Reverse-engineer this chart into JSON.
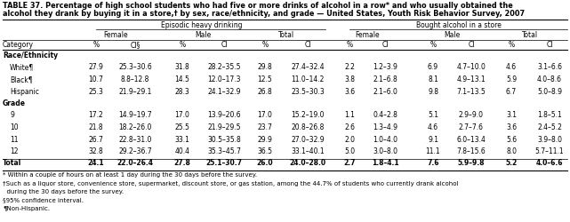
{
  "title_line1": "TABLE 37. Percentage of high school students who had five or more drinks of alcohol in a row* and who usually obtained the",
  "title_line2": "alcohol they drank by buying it in a store,† by sex, race/ethnicity, and grade — United States, Youth Risk Behavior Survey, 2007",
  "group_headers": [
    "Episodic heavy drinking",
    "Bought alcohol in a store"
  ],
  "sub_headers": [
    "Female",
    "Male",
    "Total",
    "Female",
    "Male",
    "Total"
  ],
  "col_headers": [
    "Category",
    "%",
    "CI§",
    "%",
    "CI",
    "%",
    "CI",
    "%",
    "CI",
    "%",
    "CI",
    "%",
    "CI"
  ],
  "sections": [
    {
      "name": "Race/Ethnicity",
      "rows": [
        {
          "label": "White¶",
          "values": [
            "27.9",
            "25.3–30.6",
            "31.8",
            "28.2–35.5",
            "29.8",
            "27.4–32.4",
            "2.2",
            "1.2–3.9",
            "6.9",
            "4.7–10.0",
            "4.6",
            "3.1–6.6"
          ]
        },
        {
          "label": "Black¶",
          "values": [
            "10.7",
            "8.8–12.8",
            "14.5",
            "12.0–17.3",
            "12.5",
            "11.0–14.2",
            "3.8",
            "2.1–6.8",
            "8.1",
            "4.9–13.1",
            "5.9",
            "4.0–8.6"
          ]
        },
        {
          "label": "Hispanic",
          "values": [
            "25.3",
            "21.9–29.1",
            "28.3",
            "24.1–32.9",
            "26.8",
            "23.5–30.3",
            "3.6",
            "2.1–6.0",
            "9.8",
            "7.1–13.5",
            "6.7",
            "5.0–8.9"
          ]
        }
      ]
    },
    {
      "name": "Grade",
      "rows": [
        {
          "label": "9",
          "values": [
            "17.2",
            "14.9–19.7",
            "17.0",
            "13.9–20.6",
            "17.0",
            "15.2–19.0",
            "1.1",
            "0.4–2.8",
            "5.1",
            "2.9–9.0",
            "3.1",
            "1.8–5.1"
          ]
        },
        {
          "label": "10",
          "values": [
            "21.8",
            "18.2–26.0",
            "25.5",
            "21.9–29.5",
            "23.7",
            "20.8–26.8",
            "2.6",
            "1.3–4.9",
            "4.6",
            "2.7–7.6",
            "3.6",
            "2.4–5.2"
          ]
        },
        {
          "label": "11",
          "values": [
            "26.7",
            "22.8–31.0",
            "33.1",
            "30.5–35.8",
            "29.9",
            "27.0–32.9",
            "2.0",
            "1.0–4.0",
            "9.1",
            "6.0–13.4",
            "5.6",
            "3.9–8.0"
          ]
        },
        {
          "label": "12",
          "values": [
            "32.8",
            "29.2–36.7",
            "40.4",
            "35.3–45.7",
            "36.5",
            "33.1–40.1",
            "5.0",
            "3.0–8.0",
            "11.1",
            "7.8–15.6",
            "8.0",
            "5.7–11.1"
          ]
        }
      ]
    }
  ],
  "total_row": {
    "label": "Total",
    "values": [
      "24.1",
      "22.0–26.4",
      "27.8",
      "25.1–30.7",
      "26.0",
      "24.0–28.0",
      "2.7",
      "1.8–4.1",
      "7.6",
      "5.9–9.8",
      "5.2",
      "4.0–6.6"
    ]
  },
  "footnotes": [
    "* Within a couple of hours on at least 1 day during the 30 days before the survey.",
    "†Such as a liquor store, convenience store, supermarket, discount store, or gas station, among the 44.7% of students who currently drank alcohol",
    "  during the 30 days before the survey.",
    "§95% confidence interval.",
    "¶Non-Hispanic."
  ],
  "bg_color": "#FFFFFF",
  "text_color": "#000000"
}
